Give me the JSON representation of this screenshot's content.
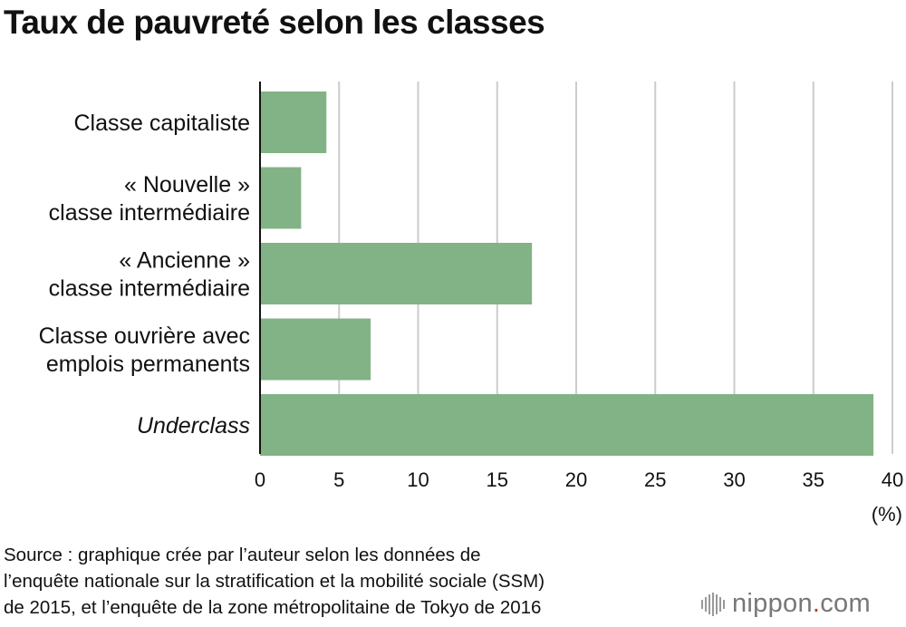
{
  "chart_data": {
    "type": "bar",
    "orientation": "horizontal",
    "title": "Taux de pauvreté selon les classes",
    "categories": [
      [
        "Classe capitaliste"
      ],
      [
        "« Nouvelle »",
        "classe intermédiaire"
      ],
      [
        "« Ancienne »",
        "classe intermédiaire"
      ],
      [
        "Classe ouvrière avec",
        "emplois permanents"
      ],
      [
        "Underclass"
      ]
    ],
    "italic_categories": [
      4
    ],
    "values": [
      4.2,
      2.6,
      17.2,
      7.0,
      38.8
    ],
    "xlim": [
      0,
      40
    ],
    "xticks": [
      0,
      5,
      10,
      15,
      20,
      25,
      30,
      35,
      40
    ],
    "xunit": "(%)",
    "grid": true,
    "bar_color": "#82b386",
    "grid_color": "#cccccc"
  },
  "source": {
    "lines": [
      "Source : graphique crée par l’auteur selon les données de",
      "l’enquête nationale sur la stratification et la mobilité sociale (SSM)",
      "de 2015, et l’enquête de la zone métropolitaine de Tokyo de 2016"
    ]
  },
  "logo": {
    "name": "nippon",
    "dot": ".",
    "suffix": "com"
  }
}
